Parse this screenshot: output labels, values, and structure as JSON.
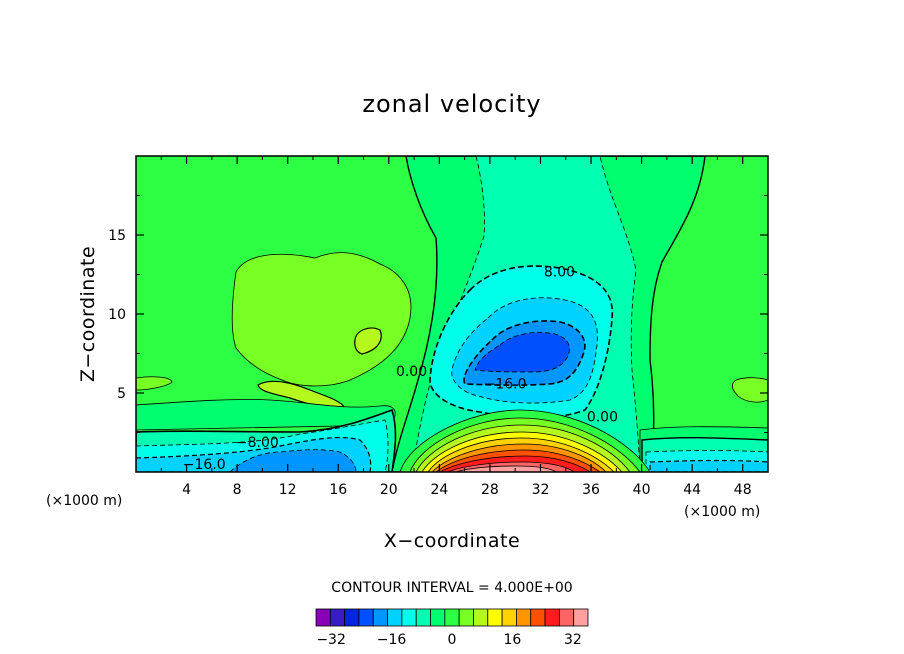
{
  "chart_data": {
    "type": "contour",
    "title": "zonal velocity",
    "xlabel": "X−coordinate",
    "ylabel": "Z−coordinate",
    "x_unit_left": "(×1000 m)",
    "x_unit_right": "(×1000 m)",
    "xlim": [
      0,
      50
    ],
    "ylim": [
      0,
      20
    ],
    "x_ticks": [
      "4",
      "8",
      "12",
      "16",
      "20",
      "24",
      "28",
      "32",
      "36",
      "40",
      "44",
      "48"
    ],
    "x_tick_values": [
      4,
      8,
      12,
      16,
      20,
      24,
      28,
      32,
      36,
      40,
      44,
      48
    ],
    "y_ticks": [
      "5",
      "10",
      "15"
    ],
    "y_tick_values": [
      5,
      10,
      15
    ],
    "contour_labels": [
      {
        "text": "8.00",
        "x": 33.5,
        "y": 12.7
      },
      {
        "text": "0.00",
        "x": 21.8,
        "y": 6.4
      },
      {
        "text": "−16.0",
        "x": 29.2,
        "y": 5.6
      },
      {
        "text": "0.00",
        "x": 36.9,
        "y": 3.5
      },
      {
        "text": "−8.00",
        "x": 9.6,
        "y": 1.9
      },
      {
        "text": "−16.0",
        "x": 5.4,
        "y": 0.5
      }
    ],
    "contour_interval": "CONTOUR INTERVAL = 4.000E+00",
    "colorbar": {
      "levels": [
        -36,
        -32,
        -28,
        -24,
        -20,
        -16,
        -12,
        -8,
        -4,
        0,
        4,
        8,
        12,
        16,
        20,
        24,
        28,
        32,
        36
      ],
      "tick_labels": [
        "−32",
        "−16",
        "0",
        "16",
        "32"
      ],
      "tick_values": [
        -32,
        -16,
        0,
        16,
        32
      ],
      "colors": [
        "#8a00b8",
        "#3a1cc6",
        "#0024e4",
        "#0050ff",
        "#0096ff",
        "#00d2ff",
        "#00ffea",
        "#00ffb0",
        "#00ff6e",
        "#2cff44",
        "#78ff24",
        "#b4f81e",
        "#ffff00",
        "#ffd200",
        "#ff9600",
        "#ff5000",
        "#ff1c1c",
        "#ff6464",
        "#ffa0a0"
      ]
    }
  }
}
